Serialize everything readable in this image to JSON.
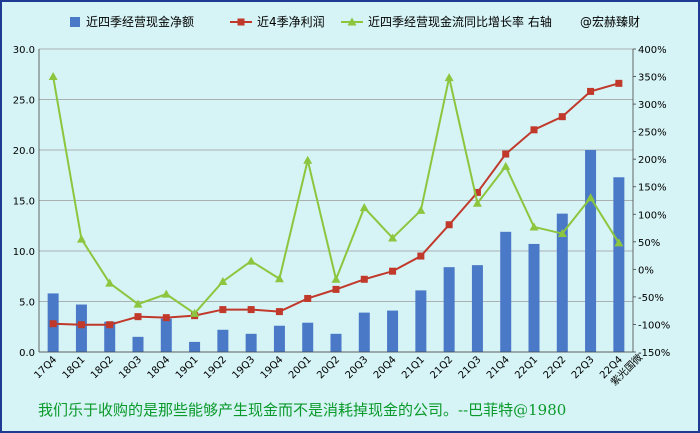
{
  "chart_data": {
    "type": "bar",
    "categories": [
      "17Q4",
      "18Q1",
      "18Q2",
      "18Q3",
      "18Q4",
      "19Q1",
      "19Q2",
      "19Q3",
      "19Q4",
      "20Q1",
      "20Q2",
      "20Q3",
      "20Q4",
      "21Q1",
      "21Q2",
      "21Q3",
      "21Q4",
      "22Q1",
      "22Q2",
      "22Q3",
      "22Q4"
    ],
    "series": [
      {
        "name": "近四季经营现金净额",
        "type": "bar",
        "axis": "left",
        "color": "#4a7ac7",
        "values": [
          5.8,
          4.7,
          3.0,
          1.5,
          3.3,
          1.0,
          2.2,
          1.8,
          2.6,
          2.9,
          1.8,
          3.9,
          4.1,
          6.1,
          8.4,
          8.6,
          11.9,
          10.7,
          13.7,
          20.0,
          17.3
        ]
      },
      {
        "name": "近4季净利润",
        "type": "line",
        "axis": "left",
        "color": "#c0392b",
        "marker": "square",
        "values": [
          2.8,
          2.7,
          2.7,
          3.5,
          3.4,
          3.6,
          4.2,
          4.2,
          4.0,
          5.3,
          6.2,
          7.2,
          8.0,
          9.5,
          12.6,
          15.8,
          19.6,
          22.0,
          23.3,
          25.8,
          26.6
        ]
      },
      {
        "name": "近四季经营现金流同比增长率 右轴",
        "type": "line",
        "axis": "right",
        "color": "#8cc63f",
        "marker": "triangle",
        "values": [
          350,
          55,
          -25,
          -63,
          -45,
          -80,
          -22,
          15,
          -17,
          198,
          -18,
          112,
          57,
          107,
          348,
          120,
          187,
          77,
          65,
          130,
          48
        ]
      }
    ],
    "watermark": "@宏赫臻财",
    "y_left": {
      "min": 0,
      "max": 30,
      "ticks": [
        "0.0",
        "5.0",
        "10.0",
        "15.0",
        "20.0",
        "25.0",
        "30.0"
      ]
    },
    "y_right": {
      "min": -150,
      "max": 400,
      "ticks": [
        "-150%",
        "-100%",
        "-50%",
        "0%",
        "50%",
        "100%",
        "150%",
        "200%",
        "250%",
        "300%",
        "350%",
        "400%"
      ]
    },
    "company_label": "紫光国微",
    "grid": "horizontal",
    "legend_position": "top"
  },
  "quote": "我们乐于收购的是那些能够产生现金而不是消耗掉现金的公司。--巴菲特@1980"
}
